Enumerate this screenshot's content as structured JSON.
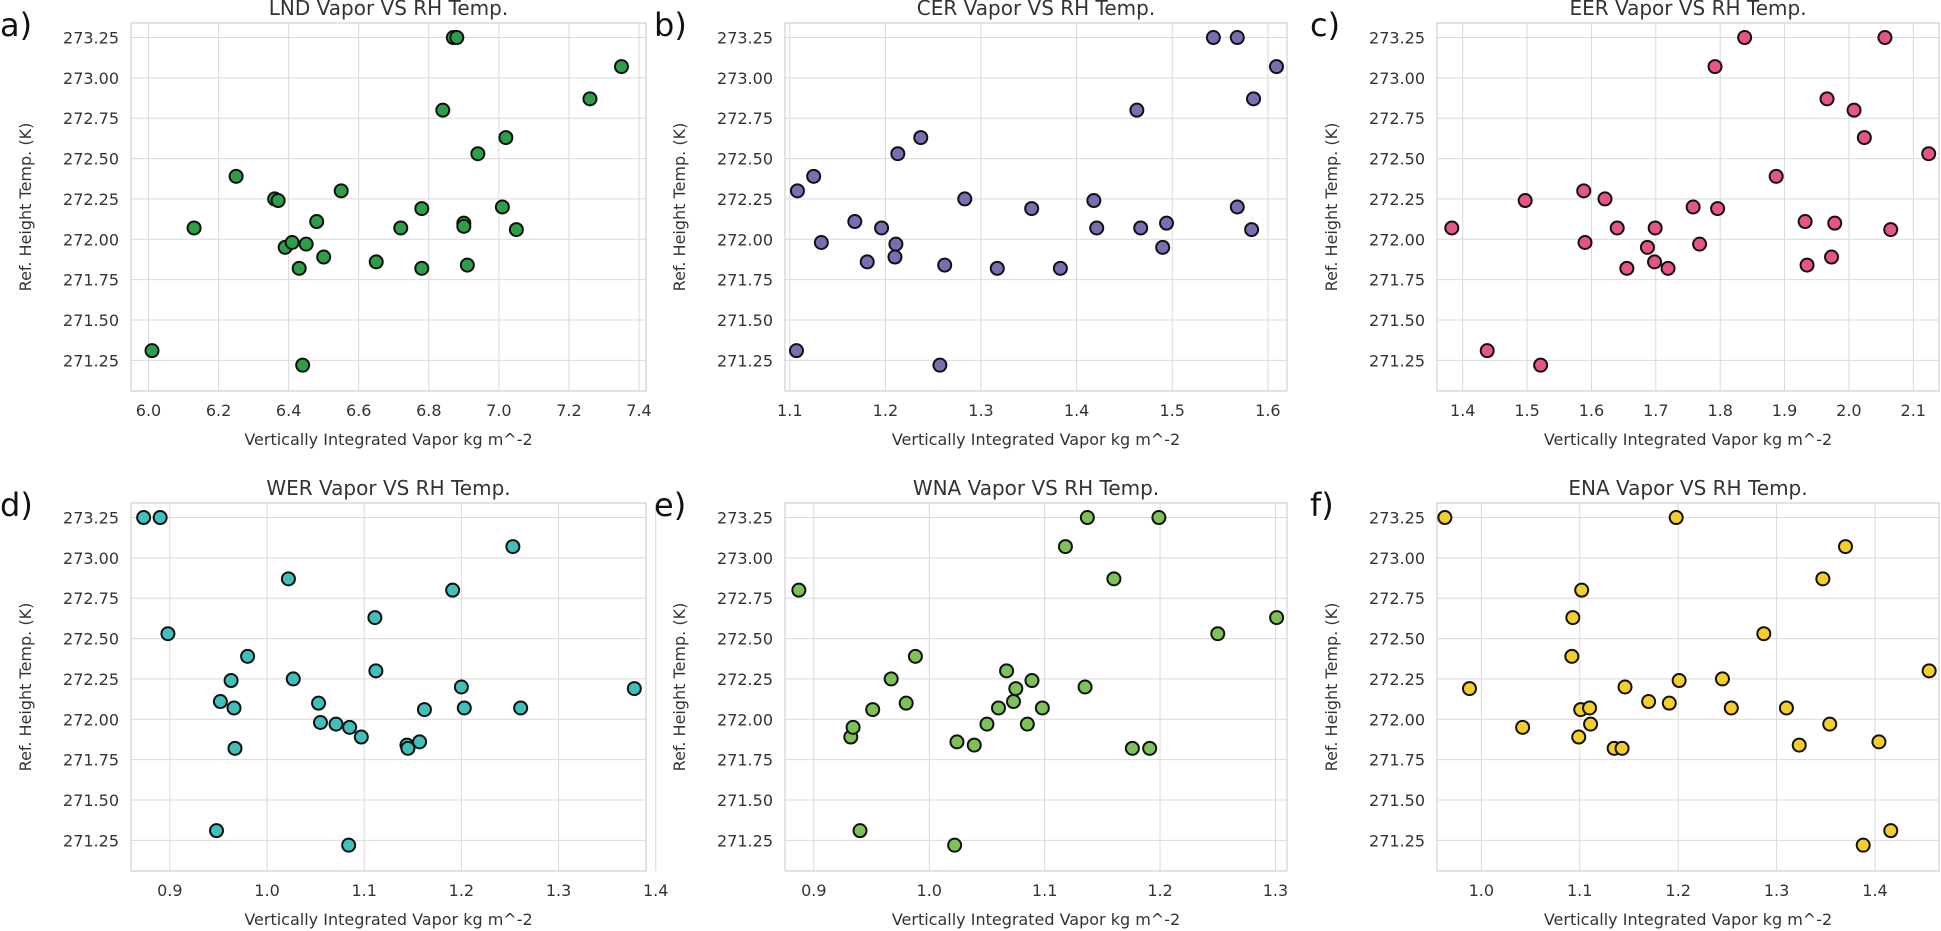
{
  "figure": {
    "xlabel": "Vertically Integrated Vapor   kg m^-2",
    "ylabel": "Ref. Height Temp. (K)"
  },
  "chart_data": [
    {
      "type": "scatter",
      "panel": "a)",
      "title": "LND Vapor VS RH Temp.",
      "xlabel": "Vertically Integrated Vapor   kg m^-2",
      "ylabel": "Ref. Height Temp. (K)",
      "color": "#2ca048",
      "xlim": [
        5.95,
        7.42
      ],
      "ylim": [
        271.06,
        273.34
      ],
      "xticks": [
        6.0,
        6.2,
        6.4,
        6.6,
        6.8,
        7.0,
        7.2,
        7.4
      ],
      "xtick_labels": [
        "6.0",
        "6.2",
        "6.4",
        "6.6",
        "6.8",
        "7.0",
        "7.2",
        "7.4"
      ],
      "yticks": [
        271.25,
        271.5,
        271.75,
        272.0,
        272.25,
        272.5,
        272.75,
        273.0,
        273.25
      ],
      "ytick_labels": [
        "271.25",
        "271.50",
        "271.75",
        "272.00",
        "272.25",
        "272.50",
        "272.75",
        "273.00",
        "273.25"
      ],
      "points": [
        [
          6.01,
          271.31
        ],
        [
          6.13,
          272.07
        ],
        [
          6.25,
          272.39
        ],
        [
          6.36,
          272.25
        ],
        [
          6.37,
          272.24
        ],
        [
          6.39,
          271.95
        ],
        [
          6.41,
          271.98
        ],
        [
          6.43,
          271.82
        ],
        [
          6.44,
          271.22
        ],
        [
          6.45,
          271.97
        ],
        [
          6.48,
          272.11
        ],
        [
          6.5,
          271.89
        ],
        [
          6.55,
          272.3
        ],
        [
          6.65,
          271.86
        ],
        [
          6.72,
          272.07
        ],
        [
          6.78,
          271.82
        ],
        [
          6.78,
          272.19
        ],
        [
          6.84,
          272.8
        ],
        [
          6.87,
          273.25
        ],
        [
          6.88,
          273.25
        ],
        [
          6.9,
          272.1
        ],
        [
          6.9,
          272.08
        ],
        [
          6.91,
          271.84
        ],
        [
          6.94,
          272.53
        ],
        [
          7.01,
          272.2
        ],
        [
          7.02,
          272.63
        ],
        [
          7.05,
          272.06
        ],
        [
          7.26,
          272.87
        ],
        [
          7.35,
          273.07
        ]
      ]
    },
    {
      "type": "scatter",
      "panel": "b)",
      "title": "CER Vapor VS RH Temp.",
      "xlabel": "Vertically Integrated Vapor   kg m^-2",
      "ylabel": "Ref. Height Temp. (K)",
      "color": "#7570b3",
      "xlim": [
        1.095,
        1.62
      ],
      "ylim": [
        271.06,
        273.34
      ],
      "xticks": [
        1.1,
        1.2,
        1.3,
        1.4,
        1.5,
        1.6
      ],
      "xtick_labels": [
        "1.1",
        "1.2",
        "1.3",
        "1.4",
        "1.5",
        "1.6"
      ],
      "yticks": [
        271.25,
        271.5,
        271.75,
        272.0,
        272.25,
        272.5,
        272.75,
        273.0,
        273.25
      ],
      "ytick_labels": [
        "271.25",
        "271.50",
        "271.75",
        "272.00",
        "272.25",
        "272.50",
        "272.75",
        "273.00",
        "273.25"
      ],
      "points": [
        [
          1.107,
          271.31
        ],
        [
          1.108,
          272.3
        ],
        [
          1.125,
          272.39
        ],
        [
          1.133,
          271.98
        ],
        [
          1.168,
          272.11
        ],
        [
          1.181,
          271.86
        ],
        [
          1.196,
          272.07
        ],
        [
          1.21,
          271.89
        ],
        [
          1.211,
          271.97
        ],
        [
          1.213,
          272.53
        ],
        [
          1.237,
          272.63
        ],
        [
          1.257,
          271.22
        ],
        [
          1.262,
          271.84
        ],
        [
          1.283,
          272.25
        ],
        [
          1.317,
          271.82
        ],
        [
          1.353,
          272.19
        ],
        [
          1.383,
          271.82
        ],
        [
          1.418,
          272.24
        ],
        [
          1.421,
          272.07
        ],
        [
          1.463,
          272.8
        ],
        [
          1.467,
          272.07
        ],
        [
          1.49,
          271.95
        ],
        [
          1.494,
          272.1
        ],
        [
          1.543,
          273.25
        ],
        [
          1.568,
          273.25
        ],
        [
          1.568,
          272.2
        ],
        [
          1.583,
          272.06
        ],
        [
          1.585,
          272.87
        ],
        [
          1.609,
          273.07
        ]
      ]
    },
    {
      "type": "scatter",
      "panel": "c)",
      "title": "EER Vapor VS RH Temp.",
      "xlabel": "Vertically Integrated Vapor   kg m^-2",
      "ylabel": "Ref. Height Temp. (K)",
      "color": "#e7548a",
      "xlim": [
        1.36,
        2.14
      ],
      "ylim": [
        271.06,
        273.34
      ],
      "xticks": [
        1.4,
        1.5,
        1.6,
        1.7,
        1.8,
        1.9,
        2.0,
        2.1
      ],
      "xtick_labels": [
        "1.4",
        "1.5",
        "1.6",
        "1.7",
        "1.8",
        "1.9",
        "2.0",
        "2.1"
      ],
      "yticks": [
        271.25,
        271.5,
        271.75,
        272.0,
        272.25,
        272.5,
        272.75,
        273.0,
        273.25
      ],
      "ytick_labels": [
        "271.25",
        "271.50",
        "271.75",
        "272.00",
        "272.25",
        "272.50",
        "272.75",
        "273.00",
        "273.25"
      ],
      "points": [
        [
          1.383,
          272.07
        ],
        [
          1.438,
          271.31
        ],
        [
          1.497,
          272.24
        ],
        [
          1.521,
          271.22
        ],
        [
          1.588,
          272.3
        ],
        [
          1.59,
          271.98
        ],
        [
          1.621,
          272.25
        ],
        [
          1.64,
          272.07
        ],
        [
          1.655,
          271.82
        ],
        [
          1.687,
          271.95
        ],
        [
          1.698,
          271.86
        ],
        [
          1.699,
          272.07
        ],
        [
          1.719,
          271.82
        ],
        [
          1.758,
          272.2
        ],
        [
          1.768,
          271.97
        ],
        [
          1.792,
          273.07
        ],
        [
          1.796,
          272.19
        ],
        [
          1.838,
          273.25
        ],
        [
          1.887,
          272.39
        ],
        [
          1.932,
          272.11
        ],
        [
          1.935,
          271.84
        ],
        [
          1.966,
          272.87
        ],
        [
          1.973,
          271.89
        ],
        [
          1.978,
          272.1
        ],
        [
          2.008,
          272.8
        ],
        [
          2.024,
          272.63
        ],
        [
          2.056,
          273.25
        ],
        [
          2.065,
          272.06
        ],
        [
          2.124,
          272.53
        ]
      ]
    },
    {
      "type": "scatter",
      "panel": "d)",
      "title": "WER Vapor VS RH Temp.",
      "xlabel": "Vertically Integrated Vapor   kg m^-2",
      "ylabel": "Ref. Height Temp. (K)",
      "color": "#3ec1bb",
      "xlim": [
        0.86,
        1.39
      ],
      "ylim": [
        271.06,
        273.34
      ],
      "xticks": [
        0.9,
        1.0,
        1.1,
        1.2,
        1.3,
        1.4
      ],
      "xtick_labels": [
        "0.9",
        "1.0",
        "1.1",
        "1.2",
        "1.3",
        "1.4"
      ],
      "yticks": [
        271.25,
        271.5,
        271.75,
        272.0,
        272.25,
        272.5,
        272.75,
        273.0,
        273.25
      ],
      "ytick_labels": [
        "271.25",
        "271.50",
        "271.75",
        "272.00",
        "272.25",
        "272.50",
        "272.75",
        "273.00",
        "273.25"
      ],
      "points": [
        [
          0.873,
          273.25
        ],
        [
          0.89,
          273.25
        ],
        [
          0.898,
          272.53
        ],
        [
          0.948,
          271.31
        ],
        [
          0.952,
          272.11
        ],
        [
          0.963,
          272.24
        ],
        [
          0.966,
          272.07
        ],
        [
          0.967,
          271.82
        ],
        [
          0.98,
          272.39
        ],
        [
          1.022,
          272.87
        ],
        [
          1.027,
          272.25
        ],
        [
          1.053,
          272.1
        ],
        [
          1.055,
          271.98
        ],
        [
          1.071,
          271.97
        ],
        [
          1.084,
          271.22
        ],
        [
          1.085,
          271.95
        ],
        [
          1.097,
          271.89
        ],
        [
          1.111,
          272.63
        ],
        [
          1.112,
          272.3
        ],
        [
          1.144,
          271.84
        ],
        [
          1.145,
          271.82
        ],
        [
          1.157,
          271.86
        ],
        [
          1.162,
          272.06
        ],
        [
          1.191,
          272.8
        ],
        [
          1.2,
          272.2
        ],
        [
          1.203,
          272.07
        ],
        [
          1.253,
          273.07
        ],
        [
          1.261,
          272.07
        ],
        [
          1.378,
          272.19
        ]
      ]
    },
    {
      "type": "scatter",
      "panel": "e)",
      "title": "WNA Vapor VS RH Temp.",
      "xlabel": "Vertically Integrated Vapor   kg m^-2",
      "ylabel": "Ref. Height Temp. (K)",
      "color": "#7dc257",
      "xlim": [
        0.875,
        1.31
      ],
      "ylim": [
        271.06,
        273.34
      ],
      "xticks": [
        0.9,
        1.0,
        1.1,
        1.2,
        1.3
      ],
      "xtick_labels": [
        "0.9",
        "1.0",
        "1.1",
        "1.2",
        "1.3"
      ],
      "yticks": [
        271.25,
        271.5,
        271.75,
        272.0,
        272.25,
        272.5,
        272.75,
        273.0,
        273.25
      ],
      "ytick_labels": [
        "271.25",
        "271.50",
        "271.75",
        "272.00",
        "272.25",
        "272.50",
        "272.75",
        "273.00",
        "273.25"
      ],
      "points": [
        [
          0.887,
          272.8
        ],
        [
          0.932,
          271.89
        ],
        [
          0.934,
          271.95
        ],
        [
          0.94,
          271.31
        ],
        [
          0.951,
          272.06
        ],
        [
          0.967,
          272.25
        ],
        [
          0.98,
          272.1
        ],
        [
          0.988,
          272.39
        ],
        [
          1.022,
          271.22
        ],
        [
          1.024,
          271.86
        ],
        [
          1.039,
          271.84
        ],
        [
          1.05,
          271.97
        ],
        [
          1.06,
          272.07
        ],
        [
          1.067,
          272.3
        ],
        [
          1.073,
          272.11
        ],
        [
          1.075,
          272.19
        ],
        [
          1.085,
          271.97
        ],
        [
          1.089,
          272.24
        ],
        [
          1.098,
          272.07
        ],
        [
          1.118,
          273.07
        ],
        [
          1.135,
          272.2
        ],
        [
          1.137,
          273.25
        ],
        [
          1.16,
          272.87
        ],
        [
          1.176,
          271.82
        ],
        [
          1.191,
          271.82
        ],
        [
          1.199,
          273.25
        ],
        [
          1.25,
          272.53
        ],
        [
          1.301,
          272.63
        ]
      ]
    },
    {
      "type": "scatter",
      "panel": "f)",
      "title": "ENA Vapor VS RH Temp.",
      "xlabel": "Vertically Integrated Vapor   kg m^-2",
      "ylabel": "Ref. Height Temp. (K)",
      "color": "#f5ce2b",
      "xlim": [
        0.955,
        1.465
      ],
      "ylim": [
        271.06,
        273.34
      ],
      "xticks": [
        1.0,
        1.1,
        1.2,
        1.3,
        1.4
      ],
      "xtick_labels": [
        "1.0",
        "1.1",
        "1.2",
        "1.3",
        "1.4"
      ],
      "yticks": [
        271.25,
        271.5,
        271.75,
        272.0,
        272.25,
        272.5,
        272.75,
        273.0,
        273.25
      ],
      "ytick_labels": [
        "271.25",
        "271.50",
        "271.75",
        "272.00",
        "272.25",
        "272.50",
        "272.75",
        "273.00",
        "273.25"
      ],
      "points": [
        [
          0.963,
          273.25
        ],
        [
          0.988,
          272.19
        ],
        [
          1.042,
          271.95
        ],
        [
          1.092,
          272.39
        ],
        [
          1.093,
          272.63
        ],
        [
          1.099,
          271.89
        ],
        [
          1.101,
          272.06
        ],
        [
          1.102,
          272.8
        ],
        [
          1.11,
          272.07
        ],
        [
          1.111,
          271.97
        ],
        [
          1.135,
          271.82
        ],
        [
          1.143,
          271.82
        ],
        [
          1.146,
          272.2
        ],
        [
          1.17,
          272.11
        ],
        [
          1.191,
          272.1
        ],
        [
          1.198,
          273.25
        ],
        [
          1.201,
          272.24
        ],
        [
          1.245,
          272.25
        ],
        [
          1.254,
          272.07
        ],
        [
          1.287,
          272.53
        ],
        [
          1.31,
          272.07
        ],
        [
          1.323,
          271.84
        ],
        [
          1.347,
          272.87
        ],
        [
          1.354,
          271.97
        ],
        [
          1.37,
          273.07
        ],
        [
          1.388,
          271.22
        ],
        [
          1.404,
          271.86
        ],
        [
          1.416,
          271.31
        ],
        [
          1.455,
          272.3
        ]
      ]
    }
  ]
}
